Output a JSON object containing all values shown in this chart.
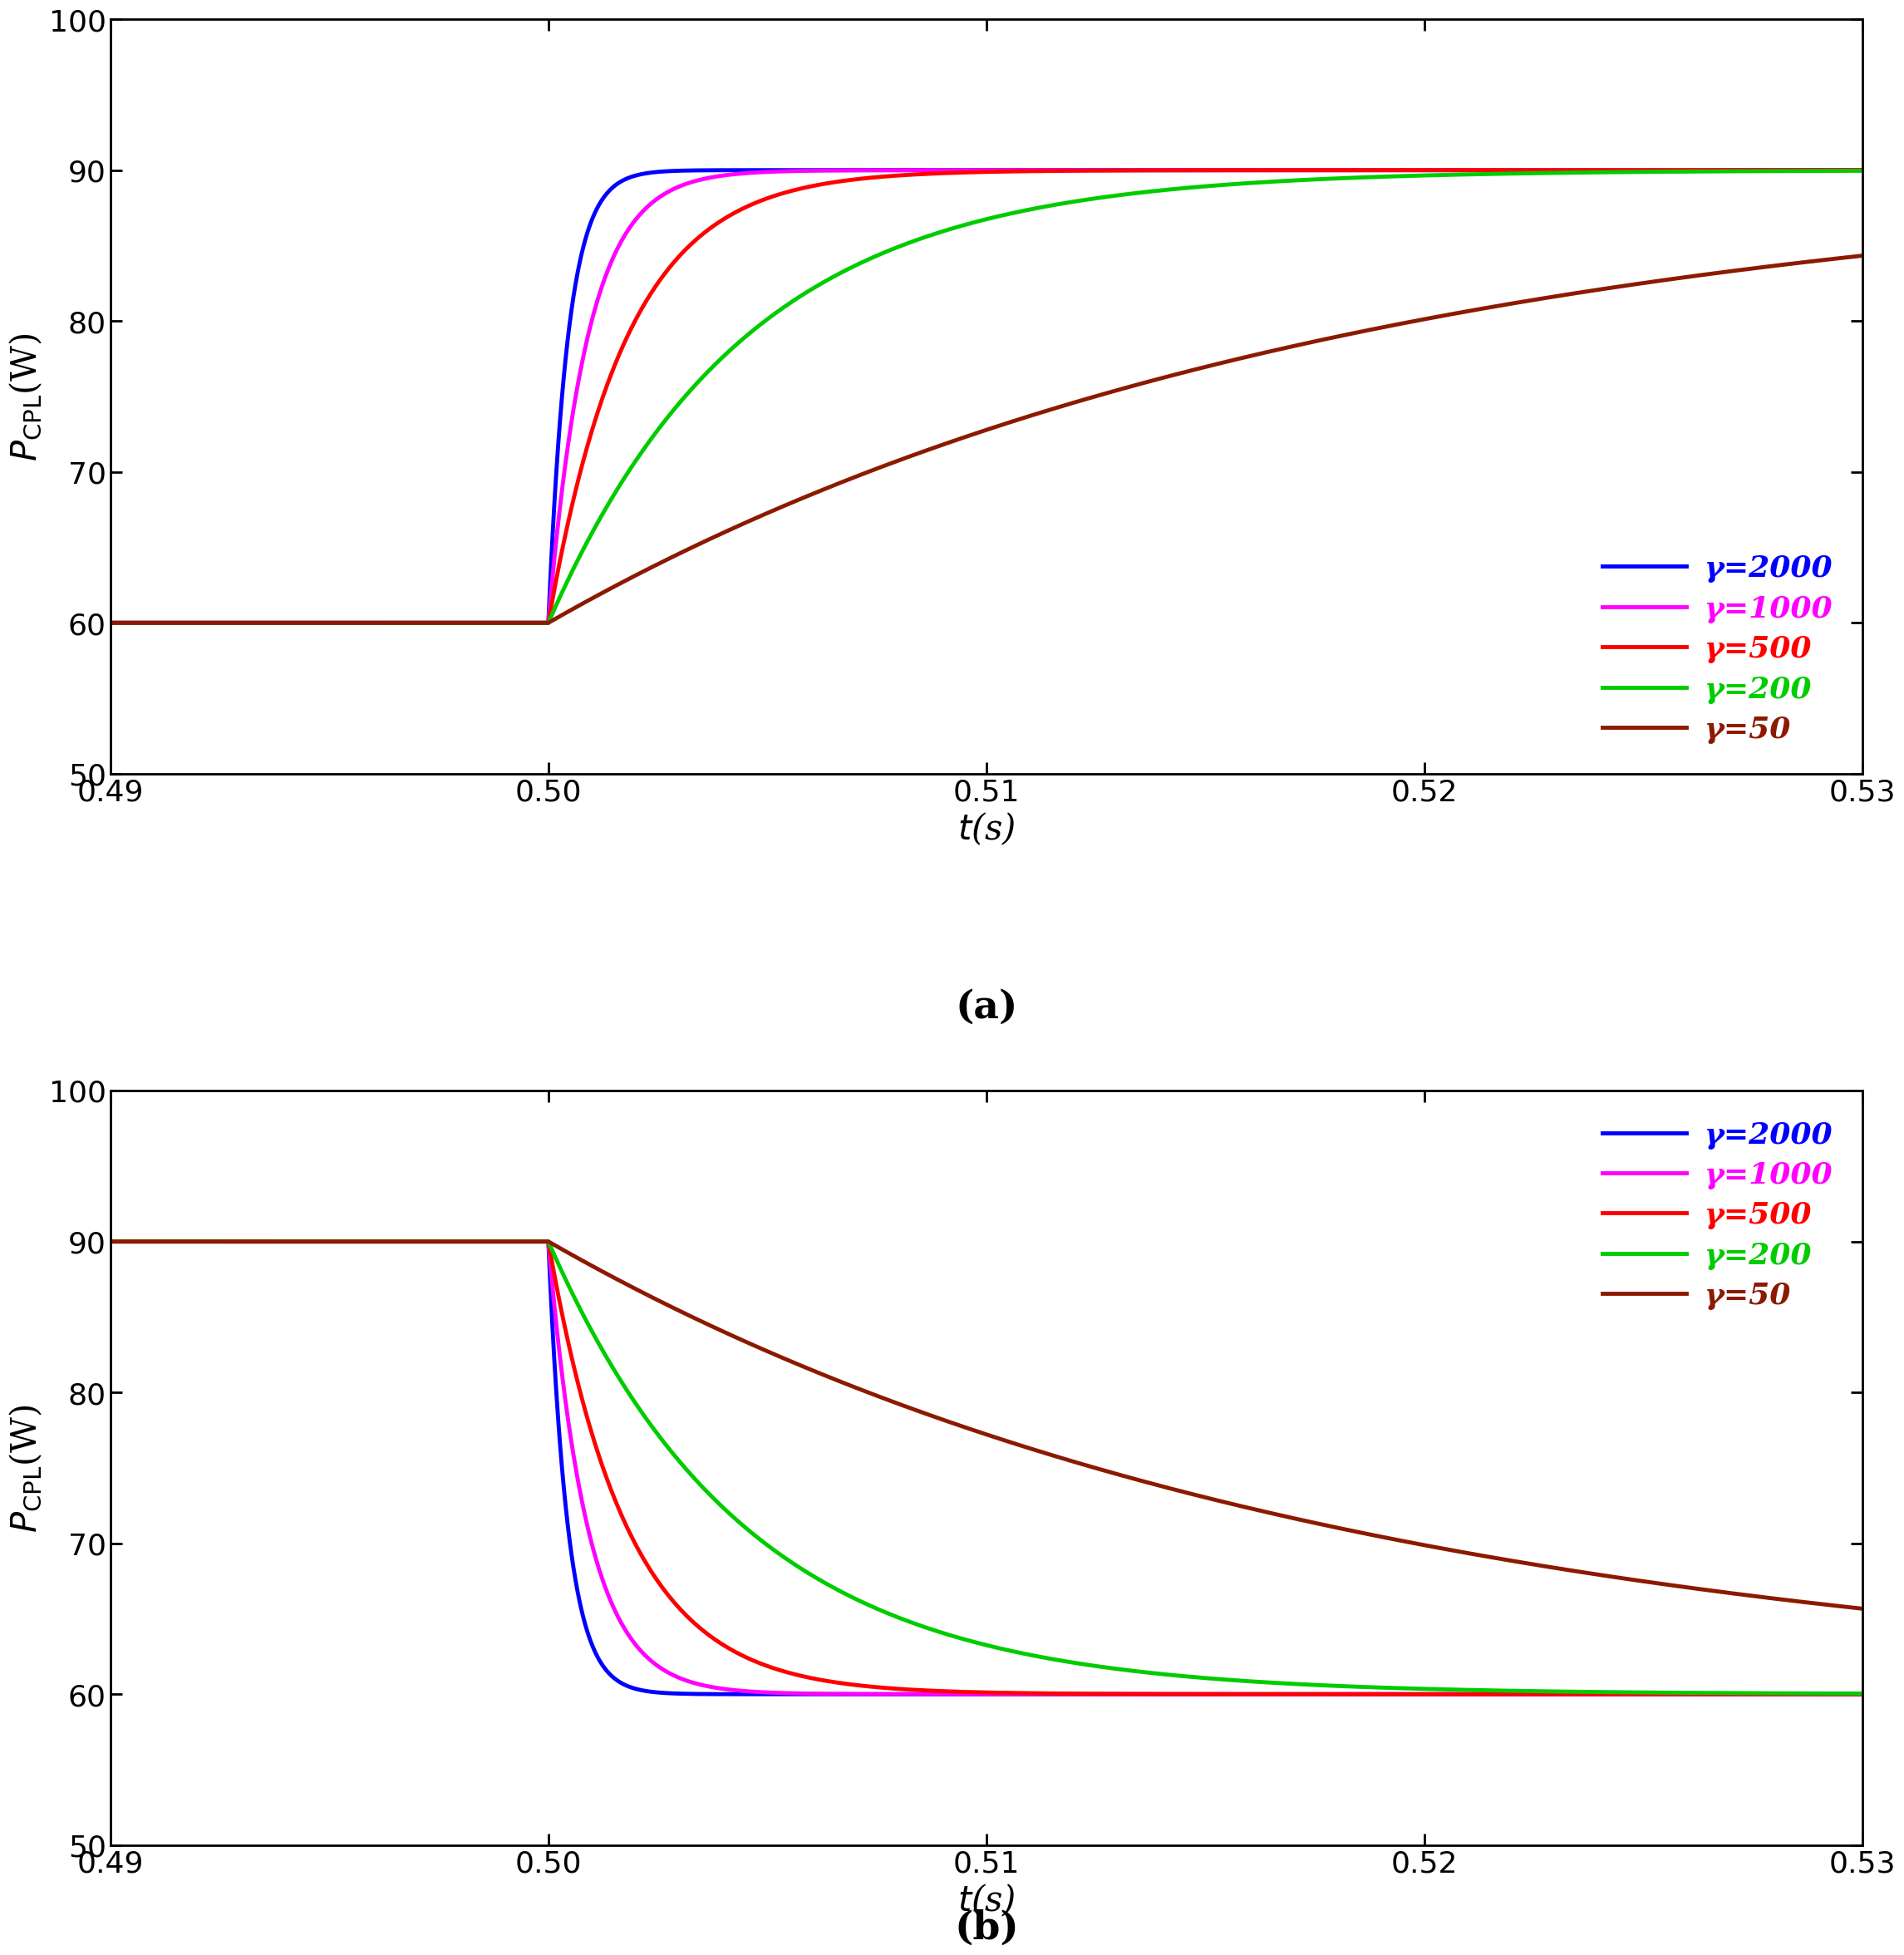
{
  "xlim": [
    0.49,
    0.53
  ],
  "ylim": [
    50,
    100
  ],
  "yticks": [
    50,
    60,
    70,
    80,
    90,
    100
  ],
  "xticks": [
    0.49,
    0.5,
    0.51,
    0.52,
    0.53
  ],
  "t_switch": 0.5,
  "p_before_a": 60,
  "p_after_a": 90,
  "p_before_b": 90,
  "p_after_b": 60,
  "gammas": [
    2000,
    1000,
    500,
    200,
    50
  ],
  "colors": [
    "#0000FF",
    "#FF00FF",
    "#FF0000",
    "#00CC00",
    "#8B1A00"
  ],
  "label_a": "(a)",
  "label_b": "(b)",
  "legend_labels": [
    "γ=2000",
    "γ=1000",
    "γ=500",
    "γ=200",
    "γ=50"
  ],
  "linewidth": 3.5,
  "caption_fontsize": 34,
  "label_fontsize": 30,
  "tick_fontsize": 26,
  "legend_fontsize": 26,
  "tau_scale": 0.00045
}
